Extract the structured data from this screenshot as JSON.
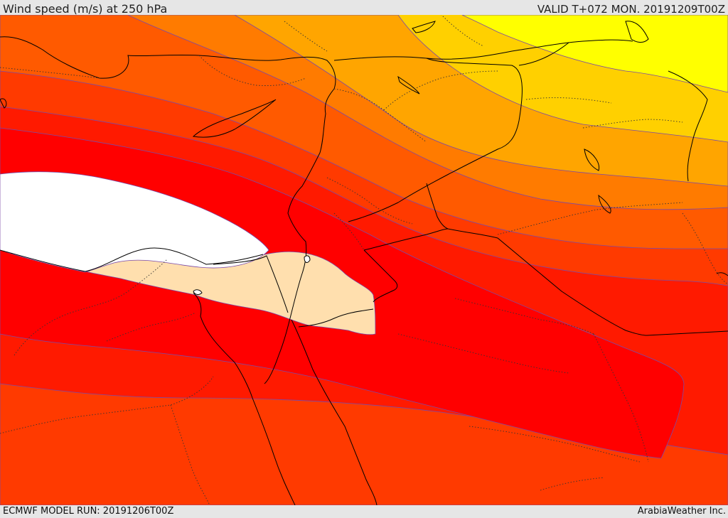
{
  "header": {
    "title": "Wind speed (m/s) at 250 hPa",
    "valid": "VALID T+072 MON. 20191209T00Z"
  },
  "footer": {
    "model_run": "ECMWF MODEL RUN: 20191206T00Z",
    "credit": "ArabiaWeather Inc."
  },
  "colors": {
    "very_low": "#ffff00",
    "low": "#ffd000",
    "mid_low": "#ffa500",
    "mid": "#ff7b00",
    "mid_high": "#ff5a00",
    "high": "#ff3a00",
    "very_high": "#ff1a00",
    "jet_core": "#ff0000",
    "max_band": "#ffdfae",
    "overflow": "#ffffff",
    "contour_line": "#7a4aa8",
    "coastline": "#000000"
  }
}
